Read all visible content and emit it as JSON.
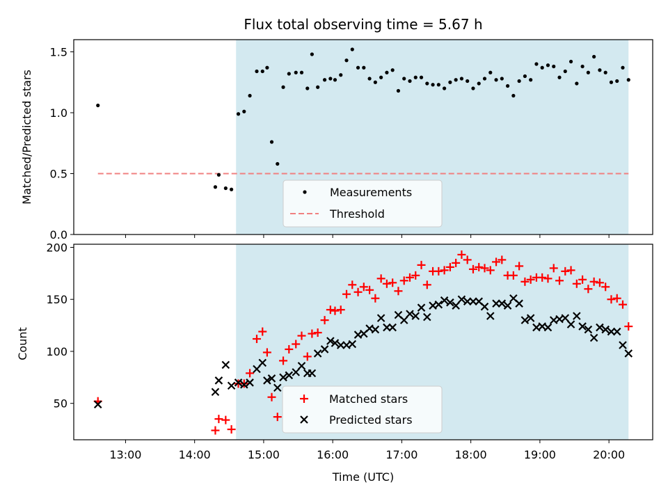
{
  "chart_data": [
    {
      "type": "scatter",
      "title": "Flux total observing time = 5.67 h",
      "ylabel": "Matched/Predicted stars",
      "xlabel": "",
      "xlim": [
        "12:15",
        "20:38"
      ],
      "ylim": [
        0,
        1.6
      ],
      "yticks": [
        0.0,
        0.5,
        1.0,
        1.5
      ],
      "ytick_labels": [
        "0.0",
        "0.5",
        "1.0",
        "1.5"
      ],
      "shaded_region": [
        "14:36",
        "20:17"
      ],
      "shade_color": "#d3e9f0",
      "threshold": 0.5,
      "legend_position": "lower-center",
      "series": [
        {
          "name": "Measurements",
          "marker": "dot",
          "color": "#000000",
          "points": [
            [
              "12:36",
              1.06
            ],
            [
              "14:18",
              0.39
            ],
            [
              "14:21",
              0.49
            ],
            [
              "14:27",
              0.38
            ],
            [
              "14:32",
              0.37
            ],
            [
              "14:38",
              0.99
            ],
            [
              "14:43",
              1.01
            ],
            [
              "14:48",
              1.14
            ],
            [
              "14:54",
              1.34
            ],
            [
              "14:59",
              1.34
            ],
            [
              "15:03",
              1.37
            ],
            [
              "15:07",
              0.76
            ],
            [
              "15:12",
              0.58
            ],
            [
              "15:17",
              1.21
            ],
            [
              "15:22",
              1.32
            ],
            [
              "15:28",
              1.33
            ],
            [
              "15:33",
              1.33
            ],
            [
              "15:38",
              1.2
            ],
            [
              "15:42",
              1.48
            ],
            [
              "15:47",
              1.21
            ],
            [
              "15:53",
              1.27
            ],
            [
              "15:58",
              1.28
            ],
            [
              "16:02",
              1.27
            ],
            [
              "16:07",
              1.31
            ],
            [
              "16:12",
              1.43
            ],
            [
              "16:17",
              1.52
            ],
            [
              "16:22",
              1.37
            ],
            [
              "16:27",
              1.37
            ],
            [
              "16:32",
              1.28
            ],
            [
              "16:37",
              1.25
            ],
            [
              "16:42",
              1.29
            ],
            [
              "16:47",
              1.33
            ],
            [
              "16:52",
              1.35
            ],
            [
              "16:57",
              1.18
            ],
            [
              "17:02",
              1.28
            ],
            [
              "17:07",
              1.26
            ],
            [
              "17:12",
              1.29
            ],
            [
              "17:17",
              1.29
            ],
            [
              "17:22",
              1.24
            ],
            [
              "17:27",
              1.23
            ],
            [
              "17:32",
              1.23
            ],
            [
              "17:37",
              1.2
            ],
            [
              "17:42",
              1.25
            ],
            [
              "17:47",
              1.27
            ],
            [
              "17:52",
              1.28
            ],
            [
              "17:57",
              1.26
            ],
            [
              "18:02",
              1.2
            ],
            [
              "18:07",
              1.24
            ],
            [
              "18:12",
              1.28
            ],
            [
              "18:17",
              1.33
            ],
            [
              "18:22",
              1.27
            ],
            [
              "18:27",
              1.28
            ],
            [
              "18:32",
              1.22
            ],
            [
              "18:37",
              1.14
            ],
            [
              "18:42",
              1.26
            ],
            [
              "18:47",
              1.3
            ],
            [
              "18:52",
              1.27
            ],
            [
              "18:57",
              1.4
            ],
            [
              "19:02",
              1.37
            ],
            [
              "19:07",
              1.39
            ],
            [
              "19:12",
              1.38
            ],
            [
              "19:17",
              1.29
            ],
            [
              "19:22",
              1.34
            ],
            [
              "19:27",
              1.42
            ],
            [
              "19:32",
              1.24
            ],
            [
              "19:37",
              1.38
            ],
            [
              "19:42",
              1.33
            ],
            [
              "19:47",
              1.46
            ],
            [
              "19:52",
              1.35
            ],
            [
              "19:57",
              1.33
            ],
            [
              "20:02",
              1.25
            ],
            [
              "20:07",
              1.26
            ],
            [
              "20:12",
              1.37
            ],
            [
              "20:17",
              1.27
            ]
          ]
        },
        {
          "name": "Threshold",
          "marker": "dashed-line",
          "color": "#f08080",
          "points": [
            [
              "12:36",
              0.5
            ],
            [
              "20:17",
              0.5
            ]
          ]
        }
      ]
    },
    {
      "type": "scatter",
      "title": "",
      "ylabel": "Count",
      "xlabel": "Time (UTC)",
      "xlim": [
        "12:15",
        "20:38"
      ],
      "ylim": [
        15,
        203
      ],
      "yticks": [
        50,
        100,
        150,
        200
      ],
      "ytick_labels": [
        "50",
        "100",
        "150",
        "200"
      ],
      "xtick_labels": [
        "13:00",
        "14:00",
        "15:00",
        "16:00",
        "17:00",
        "18:00",
        "19:00",
        "20:00"
      ],
      "shaded_region": [
        "14:36",
        "20:17"
      ],
      "shade_color": "#d3e9f0",
      "legend_position": "lower-center",
      "series": [
        {
          "name": "Matched stars",
          "marker": "plus",
          "color": "#ff0000",
          "points": [
            [
              "12:36",
              52
            ],
            [
              "14:18",
              24
            ],
            [
              "14:21",
              35
            ],
            [
              "14:27",
              34
            ],
            [
              "14:32",
              25
            ],
            [
              "14:38",
              69
            ],
            [
              "14:43",
              69
            ],
            [
              "14:48",
              79
            ],
            [
              "14:54",
              112
            ],
            [
              "14:59",
              119
            ],
            [
              "15:03",
              99
            ],
            [
              "15:07",
              56
            ],
            [
              "15:12",
              37
            ],
            [
              "15:17",
              91
            ],
            [
              "15:22",
              102
            ],
            [
              "15:28",
              107
            ],
            [
              "15:33",
              115
            ],
            [
              "15:38",
              95
            ],
            [
              "15:42",
              117
            ],
            [
              "15:47",
              118
            ],
            [
              "15:53",
              130
            ],
            [
              "15:58",
              140
            ],
            [
              "16:02",
              139
            ],
            [
              "16:07",
              140
            ],
            [
              "16:12",
              155
            ],
            [
              "16:17",
              164
            ],
            [
              "16:22",
              157
            ],
            [
              "16:27",
              162
            ],
            [
              "16:32",
              159
            ],
            [
              "16:37",
              151
            ],
            [
              "16:42",
              170
            ],
            [
              "16:47",
              165
            ],
            [
              "16:52",
              166
            ],
            [
              "16:57",
              158
            ],
            [
              "17:02",
              168
            ],
            [
              "17:07",
              171
            ],
            [
              "17:12",
              173
            ],
            [
              "17:17",
              183
            ],
            [
              "17:22",
              164
            ],
            [
              "17:27",
              177
            ],
            [
              "17:32",
              177
            ],
            [
              "17:37",
              178
            ],
            [
              "17:42",
              181
            ],
            [
              "17:47",
              185
            ],
            [
              "17:52",
              193
            ],
            [
              "17:57",
              188
            ],
            [
              "18:02",
              179
            ],
            [
              "18:07",
              181
            ],
            [
              "18:12",
              180
            ],
            [
              "18:17",
              178
            ],
            [
              "18:22",
              186
            ],
            [
              "18:27",
              188
            ],
            [
              "18:32",
              173
            ],
            [
              "18:37",
              173
            ],
            [
              "18:42",
              182
            ],
            [
              "18:47",
              167
            ],
            [
              "18:52",
              169
            ],
            [
              "18:57",
              171
            ],
            [
              "19:02",
              171
            ],
            [
              "19:07",
              170
            ],
            [
              "19:12",
              180
            ],
            [
              "19:17",
              168
            ],
            [
              "19:22",
              177
            ],
            [
              "19:27",
              178
            ],
            [
              "19:32",
              165
            ],
            [
              "19:37",
              169
            ],
            [
              "19:42",
              160
            ],
            [
              "19:47",
              167
            ],
            [
              "19:52",
              166
            ],
            [
              "19:57",
              162
            ],
            [
              "20:02",
              150
            ],
            [
              "20:07",
              151
            ],
            [
              "20:12",
              145
            ],
            [
              "20:17",
              124
            ]
          ]
        },
        {
          "name": "Predicted stars",
          "marker": "x",
          "color": "#000000",
          "points": [
            [
              "12:36",
              49
            ],
            [
              "14:18",
              61
            ],
            [
              "14:21",
              72
            ],
            [
              "14:27",
              87
            ],
            [
              "14:32",
              67
            ],
            [
              "14:38",
              70
            ],
            [
              "14:43",
              68
            ],
            [
              "14:48",
              70
            ],
            [
              "14:54",
              83
            ],
            [
              "14:59",
              89
            ],
            [
              "15:03",
              72
            ],
            [
              "15:07",
              74
            ],
            [
              "15:12",
              65
            ],
            [
              "15:17",
              75
            ],
            [
              "15:22",
              77
            ],
            [
              "15:28",
              80
            ],
            [
              "15:33",
              86
            ],
            [
              "15:38",
              79
            ],
            [
              "15:42",
              79
            ],
            [
              "15:47",
              98
            ],
            [
              "15:53",
              102
            ],
            [
              "15:58",
              110
            ],
            [
              "16:02",
              108
            ],
            [
              "16:07",
              106
            ],
            [
              "16:12",
              106
            ],
            [
              "16:17",
              107
            ],
            [
              "16:22",
              116
            ],
            [
              "16:27",
              117
            ],
            [
              "16:32",
              122
            ],
            [
              "16:37",
              121
            ],
            [
              "16:42",
              132
            ],
            [
              "16:47",
              123
            ],
            [
              "16:52",
              123
            ],
            [
              "16:57",
              135
            ],
            [
              "17:02",
              130
            ],
            [
              "17:07",
              136
            ],
            [
              "17:12",
              134
            ],
            [
              "17:17",
              142
            ],
            [
              "17:22",
              133
            ],
            [
              "17:27",
              144
            ],
            [
              "17:32",
              145
            ],
            [
              "17:37",
              149
            ],
            [
              "17:42",
              147
            ],
            [
              "17:47",
              144
            ],
            [
              "17:52",
              150
            ],
            [
              "17:57",
              148
            ],
            [
              "18:02",
              148
            ],
            [
              "18:07",
              148
            ],
            [
              "18:12",
              143
            ],
            [
              "18:17",
              134
            ],
            [
              "18:22",
              146
            ],
            [
              "18:27",
              146
            ],
            [
              "18:32",
              144
            ],
            [
              "18:37",
              151
            ],
            [
              "18:42",
              146
            ],
            [
              "18:47",
              130
            ],
            [
              "18:52",
              132
            ],
            [
              "18:57",
              123
            ],
            [
              "19:02",
              124
            ],
            [
              "19:07",
              123
            ],
            [
              "19:12",
              130
            ],
            [
              "19:17",
              131
            ],
            [
              "19:22",
              132
            ],
            [
              "19:27",
              126
            ],
            [
              "19:32",
              134
            ],
            [
              "19:37",
              124
            ],
            [
              "19:42",
              121
            ],
            [
              "19:47",
              113
            ],
            [
              "19:52",
              123
            ],
            [
              "19:57",
              121
            ],
            [
              "20:02",
              119
            ],
            [
              "20:07",
              119
            ],
            [
              "20:12",
              106
            ],
            [
              "20:17",
              98
            ]
          ]
        }
      ]
    }
  ]
}
